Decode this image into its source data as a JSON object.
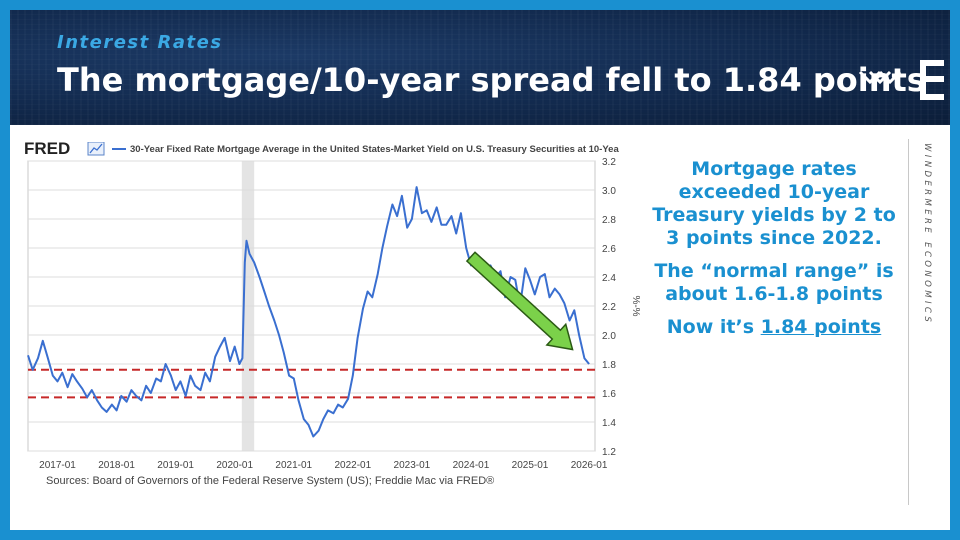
{
  "header": {
    "eyebrow": "Interest Rates",
    "headline": "The mortgage/10-year spread fell to 1.84 points"
  },
  "brand": {
    "vertical_text": "WINDERMERE ECONOMICS",
    "logo_icon": "windermere-logo-icon",
    "color": "#1a90d0"
  },
  "side": {
    "p1": "Mortgage rates exceeded 10-year Treasury yields by 2 to 3 points since 2022.",
    "p2": "The “normal range” is about 1.6-1.8 points",
    "p3_prefix": "Now it’s ",
    "p3_value": "1.84 points"
  },
  "chart_data": {
    "type": "line",
    "source_logo": "FRED",
    "source_icon": "fred-chart-icon",
    "title": "30-Year Fixed Rate Mortgage Average in the United States-Market Yield on U.S. Treasury Securities at 10-Yea",
    "ylabel": "%-%",
    "xlabel": "",
    "ylim": [
      1.2,
      3.2
    ],
    "yticks": [
      "3.2",
      "3.0",
      "2.8",
      "2.6",
      "2.4",
      "2.2",
      "2.0",
      "1.8",
      "1.6",
      "1.4",
      "1.2"
    ],
    "xlim": [
      2016.5,
      2026.1
    ],
    "xticks": [
      {
        "label": "2017-01",
        "x": 2017.0
      },
      {
        "label": "2018-01",
        "x": 2018.0
      },
      {
        "label": "2019-01",
        "x": 2019.0
      },
      {
        "label": "2020-01",
        "x": 2020.0
      },
      {
        "label": "2021-01",
        "x": 2021.0
      },
      {
        "label": "2022-01",
        "x": 2022.0
      },
      {
        "label": "2023-01",
        "x": 2023.0
      },
      {
        "label": "2024-01",
        "x": 2024.0
      },
      {
        "label": "2025-01",
        "x": 2025.0
      },
      {
        "label": "2026-01",
        "x": 2026.0
      }
    ],
    "recession": [
      2020.12,
      2020.33
    ],
    "series": [
      {
        "color": "#3a6fd0",
        "x": [
          2016.5,
          2016.58,
          2016.67,
          2016.75,
          2016.83,
          2016.92,
          2017.0,
          2017.08,
          2017.17,
          2017.25,
          2017.33,
          2017.42,
          2017.5,
          2017.58,
          2017.67,
          2017.75,
          2017.83,
          2017.92,
          2018.0,
          2018.08,
          2018.17,
          2018.25,
          2018.33,
          2018.42,
          2018.5,
          2018.58,
          2018.67,
          2018.75,
          2018.83,
          2018.92,
          2019.0,
          2019.08,
          2019.17,
          2019.25,
          2019.33,
          2019.42,
          2019.5,
          2019.58,
          2019.67,
          2019.75,
          2019.83,
          2019.92,
          2020.0,
          2020.08,
          2020.13,
          2020.17,
          2020.2,
          2020.25,
          2020.33,
          2020.42,
          2020.5,
          2020.58,
          2020.67,
          2020.75,
          2020.83,
          2020.92,
          2021.0,
          2021.08,
          2021.17,
          2021.25,
          2021.33,
          2021.42,
          2021.5,
          2021.58,
          2021.67,
          2021.75,
          2021.83,
          2021.92,
          2022.0,
          2022.08,
          2022.17,
          2022.25,
          2022.33,
          2022.42,
          2022.5,
          2022.58,
          2022.67,
          2022.75,
          2022.83,
          2022.92,
          2023.0,
          2023.08,
          2023.17,
          2023.25,
          2023.33,
          2023.42,
          2023.5,
          2023.58,
          2023.67,
          2023.75,
          2023.83,
          2023.92,
          2024.0,
          2024.08,
          2024.17,
          2024.25,
          2024.33,
          2024.42,
          2024.5,
          2024.58,
          2024.67,
          2024.75,
          2024.83,
          2024.92,
          2025.0,
          2025.08,
          2025.17,
          2025.25,
          2025.33,
          2025.42,
          2025.5,
          2025.58,
          2025.67,
          2025.75,
          2025.83,
          2025.92,
          2026.0
        ],
        "y": [
          1.86,
          1.76,
          1.84,
          1.96,
          1.85,
          1.72,
          1.68,
          1.74,
          1.64,
          1.73,
          1.68,
          1.63,
          1.57,
          1.62,
          1.55,
          1.5,
          1.47,
          1.52,
          1.48,
          1.58,
          1.54,
          1.62,
          1.58,
          1.55,
          1.65,
          1.6,
          1.7,
          1.68,
          1.8,
          1.72,
          1.62,
          1.68,
          1.58,
          1.72,
          1.65,
          1.62,
          1.74,
          1.68,
          1.85,
          1.92,
          1.98,
          1.82,
          1.92,
          1.8,
          1.84,
          2.5,
          2.65,
          2.56,
          2.5,
          2.4,
          2.3,
          2.2,
          2.1,
          2.0,
          1.88,
          1.72,
          1.7,
          1.55,
          1.42,
          1.38,
          1.3,
          1.34,
          1.42,
          1.48,
          1.46,
          1.52,
          1.5,
          1.56,
          1.72,
          1.98,
          2.18,
          2.3,
          2.26,
          2.42,
          2.6,
          2.75,
          2.9,
          2.82,
          2.96,
          2.74,
          2.8,
          3.02,
          2.84,
          2.86,
          2.78,
          2.88,
          2.76,
          2.76,
          2.82,
          2.7,
          2.84,
          2.6,
          2.48,
          2.56,
          2.5,
          2.42,
          2.48,
          2.4,
          2.44,
          2.26,
          2.4,
          2.38,
          2.2,
          2.46,
          2.38,
          2.28,
          2.4,
          2.42,
          2.26,
          2.32,
          2.28,
          2.22,
          2.1,
          2.17,
          2.0,
          1.84,
          1.8
        ]
      }
    ],
    "reference_lines": [
      {
        "y": 1.76,
        "color": "#c62828",
        "style": "dashed"
      },
      {
        "y": 1.57,
        "color": "#c62828",
        "style": "dashed"
      }
    ],
    "arrow": {
      "from": [
        2024.0,
        2.54
      ],
      "to": [
        2025.72,
        1.9
      ],
      "color": "#7bd14a"
    }
  },
  "sources": "Sources: Board of Governors of the Federal Reserve System (US); Freddie Mac via FRED®"
}
